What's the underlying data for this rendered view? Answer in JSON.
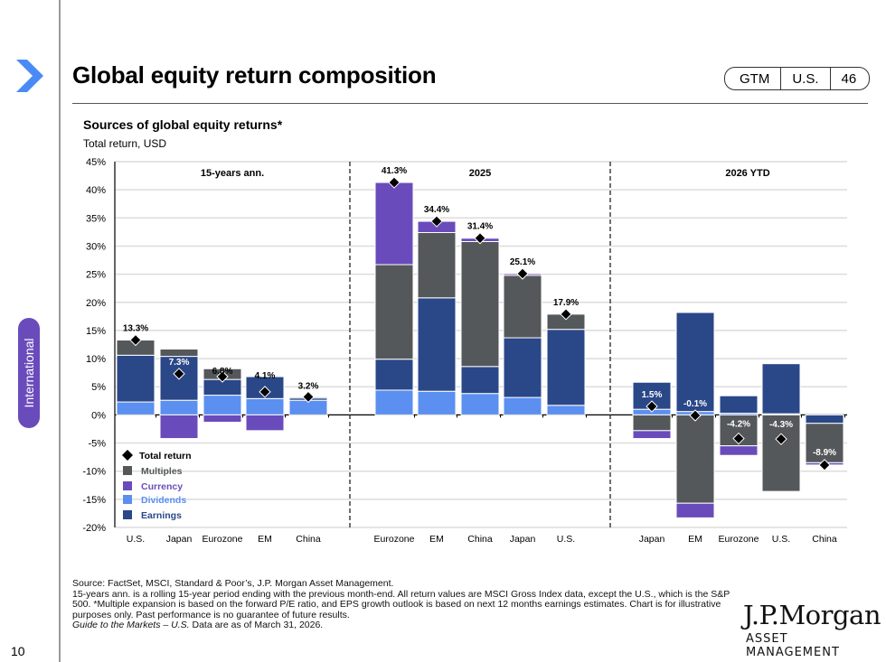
{
  "header": {
    "title": "Global equity return composition",
    "badge": [
      "GTM",
      "U.S.",
      "46"
    ]
  },
  "side_tab": {
    "label": "International"
  },
  "colors": {
    "multiples": "#54585a",
    "currency": "#6a4bbb",
    "dividends": "#5b8ff0",
    "earnings": "#2a4788",
    "total_return": "#000000",
    "accent_chevron": "#4a8af4"
  },
  "chart_data": {
    "type": "bar",
    "stacked": true,
    "title": "Sources of global equity returns*",
    "ylabel": "Total return, USD",
    "ylim": [
      -20,
      45
    ],
    "yticks": [
      "45%",
      "40%",
      "35%",
      "30%",
      "25%",
      "20%",
      "15%",
      "10%",
      "5%",
      "0%",
      "-5%",
      "-10%",
      "-15%",
      "-20%"
    ],
    "grid": true,
    "legend_position": "bottom-left",
    "legend": [
      {
        "key": "total_return",
        "label": "Total return",
        "marker": "diamond"
      },
      {
        "key": "multiples",
        "label": "Multiples"
      },
      {
        "key": "currency",
        "label": "Currency"
      },
      {
        "key": "dividends",
        "label": "Dividends"
      },
      {
        "key": "earnings",
        "label": "Earnings"
      }
    ],
    "panels": [
      {
        "label": "15-years ann.",
        "categories": [
          "U.S.",
          "Japan",
          "Eurozone",
          "EM",
          "China"
        ],
        "dividends": [
          2.3,
          2.6,
          3.5,
          2.9,
          2.6
        ],
        "earnings": [
          8.3,
          7.8,
          2.8,
          3.9,
          0.4
        ],
        "multiples": [
          2.7,
          1.3,
          1.9,
          0.0,
          0.2
        ],
        "currency": [
          0.0,
          -4.2,
          -1.3,
          -2.8,
          0.0
        ],
        "total_return": [
          13.3,
          7.3,
          6.8,
          4.1,
          3.2
        ],
        "total_labels": [
          "13.3%",
          "7.3%",
          "6.8%",
          "4.1%",
          "3.2%"
        ]
      },
      {
        "label": "2025",
        "categories": [
          "Eurozone",
          "EM",
          "China",
          "Japan",
          "U.S."
        ],
        "dividends": [
          4.4,
          4.2,
          3.8,
          3.1,
          1.7
        ],
        "earnings": [
          5.5,
          16.6,
          4.8,
          10.6,
          13.5
        ],
        "multiples": [
          16.8,
          11.6,
          22.2,
          11.1,
          2.7
        ],
        "currency": [
          14.6,
          2.0,
          0.6,
          0.3,
          0.0
        ],
        "total_return": [
          41.3,
          34.4,
          31.4,
          25.1,
          17.9
        ],
        "total_labels": [
          "41.3%",
          "34.4%",
          "31.4%",
          "25.1%",
          "17.9%"
        ]
      },
      {
        "label": "2026 YTD",
        "categories": [
          "Japan",
          "EM",
          "Eurozone",
          "U.S.",
          "China"
        ],
        "dividends": [
          1.0,
          0.6,
          0.3,
          0.2,
          0.0
        ],
        "earnings": [
          4.8,
          17.6,
          3.1,
          8.9,
          -1.5
        ],
        "multiples": [
          -2.8,
          -15.7,
          -5.5,
          -13.6,
          -7.0
        ],
        "currency": [
          -1.4,
          -2.6,
          -1.7,
          0.0,
          -0.4
        ],
        "total_return": [
          1.5,
          -0.1,
          -4.2,
          -4.3,
          -8.9
        ],
        "total_labels": [
          "1.5%",
          "-0.1%",
          "-4.2%",
          "-4.3%",
          "-8.9%"
        ]
      }
    ]
  },
  "footnote": {
    "line1": "Source: FactSet, MSCI, Standard & Poor’s, J.P. Morgan Asset Management.",
    "line2": "15-years ann. is a rolling 15-year period ending with the previous month-end. All return values are MSCI Gross Index data, except the U.S., which is the S&P 500. *Multiple expansion is based on the forward P/E ratio, and EPS growth outlook is based on next 12 months earnings estimates. Chart is for illustrative purposes only. Past performance is no guarantee of future results.",
    "guide_italic": "Guide to the Markets – U.S.",
    "guide_rest": " Data are as of March 31, 2026."
  },
  "logo": {
    "name": "J.P.Morgan",
    "sub": "ASSET MANAGEMENT"
  },
  "page_number": "10"
}
